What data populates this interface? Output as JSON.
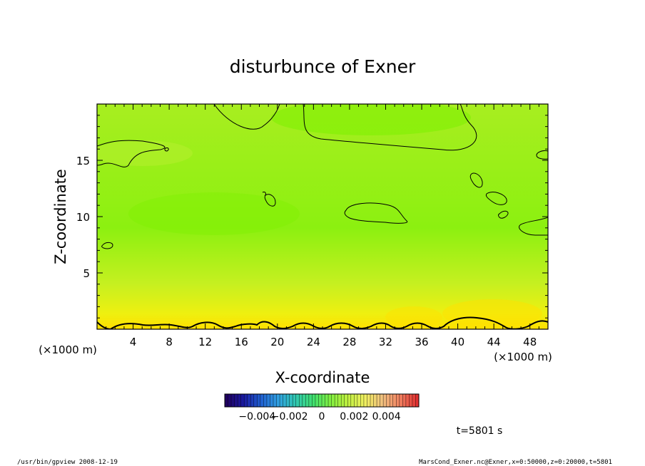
{
  "chart_data": {
    "type": "heatmap",
    "title": "disturbunce of Exner",
    "xlabel": "X-coordinate",
    "ylabel": "Z-coordinate",
    "x_unit": "(×1000 m)",
    "z_unit": "(×1000 m)",
    "xlim": [
      0,
      50
    ],
    "ylim": [
      0,
      20
    ],
    "x_ticks": [
      4,
      8,
      12,
      16,
      20,
      24,
      28,
      32,
      36,
      40,
      44,
      48
    ],
    "y_ticks": [
      5,
      10,
      15
    ],
    "grid": false,
    "colorbar": {
      "range": [
        -0.006,
        0.006
      ],
      "tick_labels": [
        "−0.004",
        "−0.002",
        "0",
        "0.002",
        "0.004"
      ],
      "tick_values": [
        -0.004,
        -0.002,
        0,
        0.002,
        0.004
      ],
      "colors": [
        "#200060",
        "#1a1aa0",
        "#2060d0",
        "#30a0e0",
        "#30c8b0",
        "#40e070",
        "#80f040",
        "#c0f040",
        "#f0f060",
        "#f0c080",
        "#f08060",
        "#e03030"
      ]
    },
    "field_colors": {
      "low": "#7cf000",
      "mid": "#a8ee20",
      "high": "#f4f000",
      "max": "#ffe000"
    }
  },
  "annotations": {
    "time": "t=5801 s",
    "footer_left": "/usr/bin/gpview  2008-12-19",
    "footer_right": "MarsCond_Exner.nc@Exner,x=0:50000,z=0:20000,t=5801"
  }
}
